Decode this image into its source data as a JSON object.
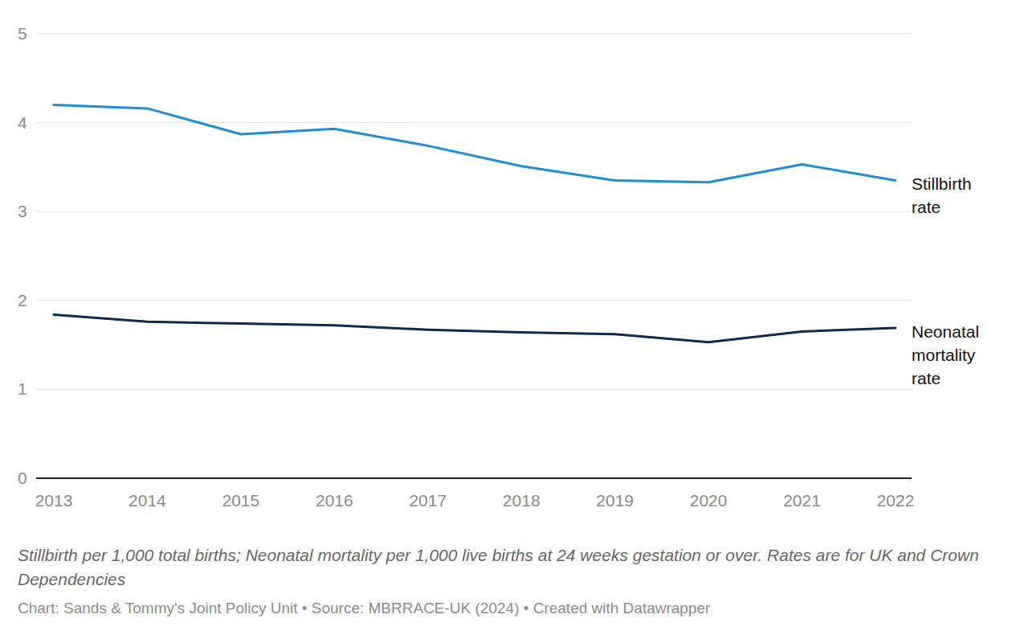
{
  "chart_data": {
    "type": "line",
    "caption": "Stillbirth per 1,000 total births; Neonatal mortality per 1,000 live births at 24 weeks gestation or over. Rates are for UK and Crown Dependencies",
    "source": "Chart: Sands & Tommy's Joint Policy Unit • Source: MBRRACE-UK (2024) • Created with Datawrapper",
    "x": [
      2013,
      2014,
      2015,
      2016,
      2017,
      2018,
      2019,
      2020,
      2021,
      2022
    ],
    "series": [
      {
        "name": "Stillbirth rate",
        "color": "#1f8dd6",
        "values": [
          4.2,
          4.16,
          3.87,
          3.93,
          3.74,
          3.51,
          3.35,
          3.33,
          3.53,
          3.35
        ]
      },
      {
        "name": "Neonatal mortality rate",
        "color": "#0d2a4f",
        "values": [
          1.84,
          1.76,
          1.74,
          1.72,
          1.67,
          1.64,
          1.62,
          1.53,
          1.65,
          1.69
        ]
      }
    ],
    "xlim": [
      2013,
      2022
    ],
    "xticks": [
      2013,
      2014,
      2015,
      2016,
      2017,
      2018,
      2019,
      2020,
      2021,
      2022
    ],
    "ylim": [
      0,
      5
    ],
    "yticks": [
      0,
      1,
      2,
      3,
      4,
      5
    ],
    "grid": true
  }
}
